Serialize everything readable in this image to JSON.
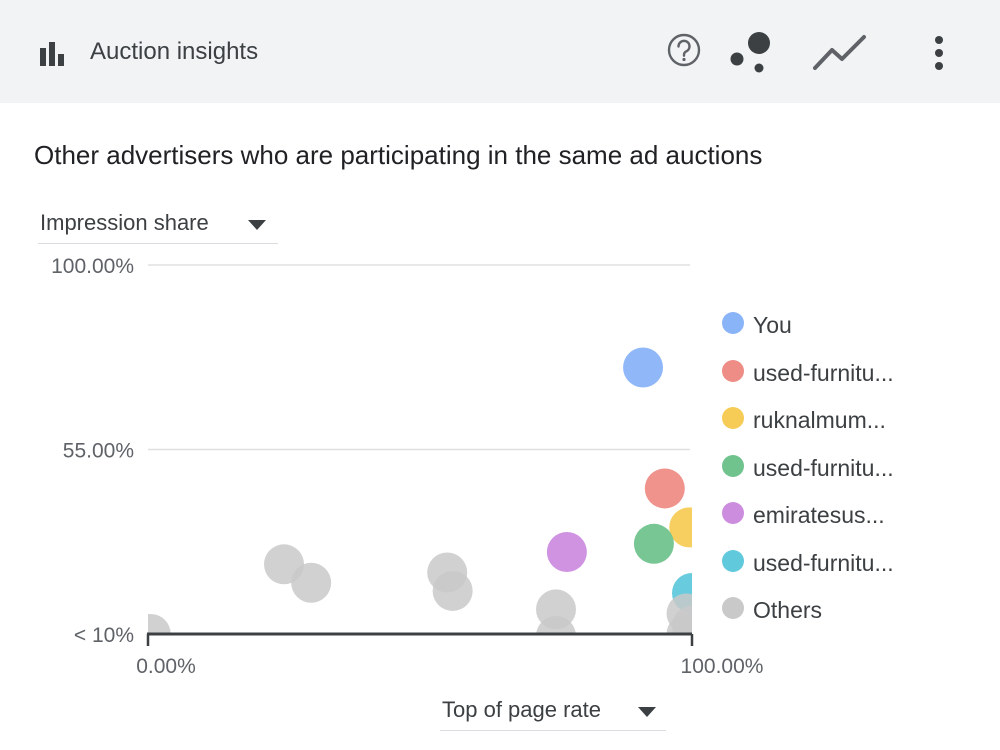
{
  "header": {
    "title": "Auction insights",
    "icons": [
      "bar-chart-icon",
      "help-icon",
      "bubble-chart-icon",
      "trend-line-icon",
      "more-vert-icon"
    ]
  },
  "subtitle": "Other advertisers who are participating in the same ad auctions",
  "y_metric": {
    "label": "Impression share",
    "icon": "caret-down-icon"
  },
  "x_metric": {
    "label": "Top of page rate",
    "icon": "caret-down-icon"
  },
  "chart_data": {
    "type": "scatter",
    "title": "",
    "xlabel": "Top of page rate",
    "ylabel": "Impression share",
    "xlim": [
      0,
      100
    ],
    "ylim": [
      10,
      100
    ],
    "x_ticks": [
      "0.00%",
      "100.00%"
    ],
    "y_ticks": [
      {
        "value": 100,
        "label": "100.00%"
      },
      {
        "value": 55,
        "label": "55.00%"
      },
      {
        "value": 10,
        "label": "< 10%"
      }
    ],
    "grid": true,
    "legend_position": "right",
    "series": [
      {
        "name": "You",
        "color": "#8ab4f8",
        "points": [
          {
            "x": 91,
            "y": 75
          }
        ]
      },
      {
        "name": "used-furnitu...",
        "color": "#ee8d86",
        "points": [
          {
            "x": 95,
            "y": 45.5
          }
        ]
      },
      {
        "name": "ruknalmum...",
        "color": "#f6cc57",
        "points": [
          {
            "x": 99.5,
            "y": 36
          }
        ]
      },
      {
        "name": "used-furnitu...",
        "color": "#71c38e",
        "points": [
          {
            "x": 93,
            "y": 32
          }
        ]
      },
      {
        "name": "emiratesus...",
        "color": "#cd8ddf",
        "points": [
          {
            "x": 77,
            "y": 30
          }
        ]
      },
      {
        "name": "used-furnitu...",
        "color": "#61c9dc",
        "points": [
          {
            "x": 100,
            "y": 20
          }
        ]
      },
      {
        "name": "Others",
        "color": "#c9c9c9",
        "points": [
          {
            "x": 0.5,
            "y": 10
          },
          {
            "x": 25,
            "y": 27
          },
          {
            "x": 30,
            "y": 22.5
          },
          {
            "x": 55,
            "y": 25
          },
          {
            "x": 56,
            "y": 20.5
          },
          {
            "x": 75,
            "y": 16
          },
          {
            "x": 75,
            "y": 9.5
          },
          {
            "x": 99,
            "y": 15
          },
          {
            "x": 99,
            "y": 10
          },
          {
            "x": 100,
            "y": 12
          }
        ]
      }
    ]
  }
}
